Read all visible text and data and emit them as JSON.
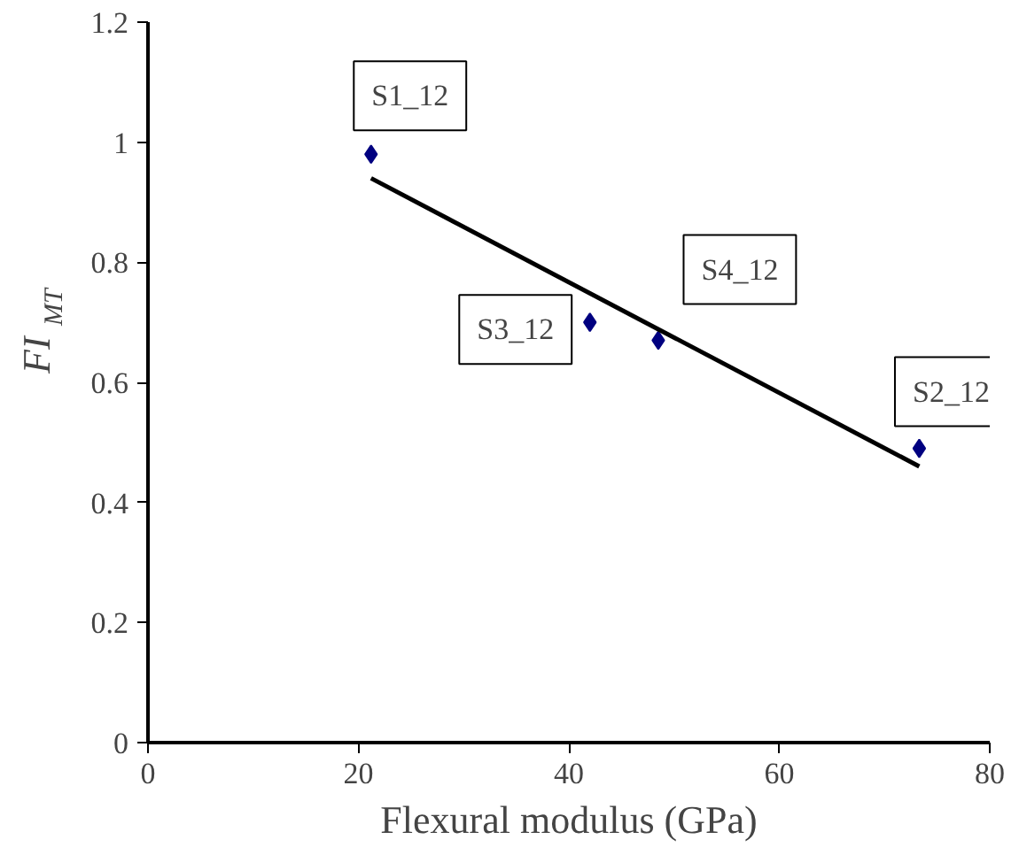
{
  "chart_data": {
    "type": "scatter",
    "xlabel": "Flexural modulus (GPa)",
    "ylabel": "FI$_{MT}$",
    "xlim": [
      0,
      80
    ],
    "ylim": [
      0,
      1.2
    ],
    "xticks": [
      0,
      20,
      40,
      60,
      80
    ],
    "yticks": [
      0,
      0.2,
      0.4,
      0.6,
      0.8,
      1,
      1.2
    ],
    "grid": false,
    "legend": false,
    "marker": "diamond",
    "series": [
      {
        "color": "#000080",
        "x": [
          21.2,
          42,
          48.5,
          73.3
        ],
        "values": [
          0.98,
          0.7,
          0.67,
          0.49
        ]
      },
      {
        "type": "line",
        "color": "#000000",
        "x": [
          21.2,
          73.3
        ],
        "values": [
          0.94,
          0.46
        ],
        "marker": "none"
      }
    ],
    "annotations": [
      {
        "text": "S1_12",
        "x": 21.2,
        "y": 0.98
      },
      {
        "text": "S3_12",
        "x": 42,
        "y": 0.7
      },
      {
        "text": "S4_12",
        "x": 48.5,
        "y": 0.67
      },
      {
        "text": "S2_12",
        "x": 73.3,
        "y": 0.49
      }
    ]
  }
}
